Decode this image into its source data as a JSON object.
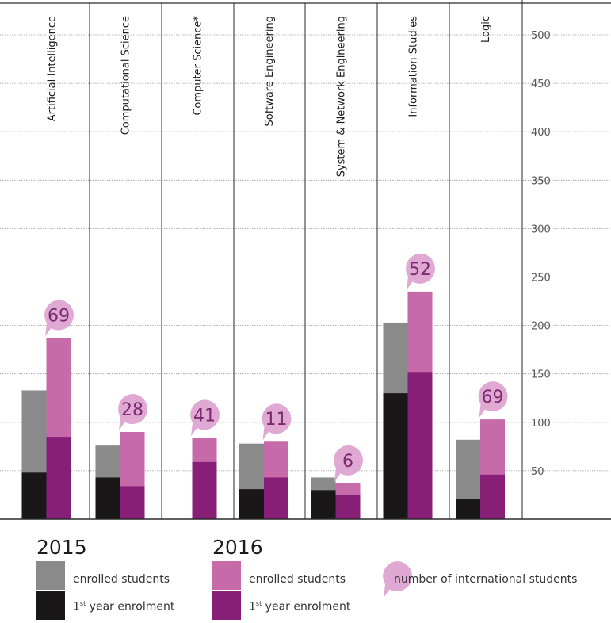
{
  "colors": {
    "enrolled_2015": "#8a8a8a",
    "first_year_2015": "#1a1718",
    "enrolled_2016": "#c66aaa",
    "first_year_2016": "#871f77",
    "bubble": "#e0a9d3",
    "bubble_text": "#7b2a6d",
    "grid": "#9a9a9a",
    "axis_text": "#555555"
  },
  "legend": {
    "year_2015": "2015",
    "year_2016": "2016",
    "enrolled_label": "enrolled students",
    "first_year_prefix": "1",
    "first_year_sup": "st",
    "first_year_suffix": " year enrolment",
    "intl_label": "number of international students"
  },
  "chart_data": {
    "type": "bar",
    "categories": [
      "Artificial Intelligence",
      "Computational Science",
      "Computer Science*",
      "Software Engineering",
      "System & Network Engineering",
      "Information Studies",
      "Logic"
    ],
    "y_ticks": [
      50,
      100,
      150,
      200,
      250,
      300,
      350,
      400,
      450,
      500
    ],
    "ylim": [
      0,
      500
    ],
    "grid": true,
    "series": [
      {
        "name": "enrolled students",
        "year": "2015",
        "values": [
          133,
          76,
          null,
          78,
          43,
          203,
          82
        ]
      },
      {
        "name": "1st year enrolment",
        "year": "2015",
        "values": [
          48,
          43,
          null,
          31,
          30,
          130,
          21
        ]
      },
      {
        "name": "enrolled students",
        "year": "2016",
        "values": [
          187,
          90,
          84,
          80,
          37,
          235,
          103
        ]
      },
      {
        "name": "1st year enrolment",
        "year": "2016",
        "values": [
          85,
          34,
          59,
          43,
          25,
          152,
          46
        ]
      }
    ],
    "international_students": [
      69,
      28,
      41,
      11,
      6,
      52,
      69
    ]
  }
}
